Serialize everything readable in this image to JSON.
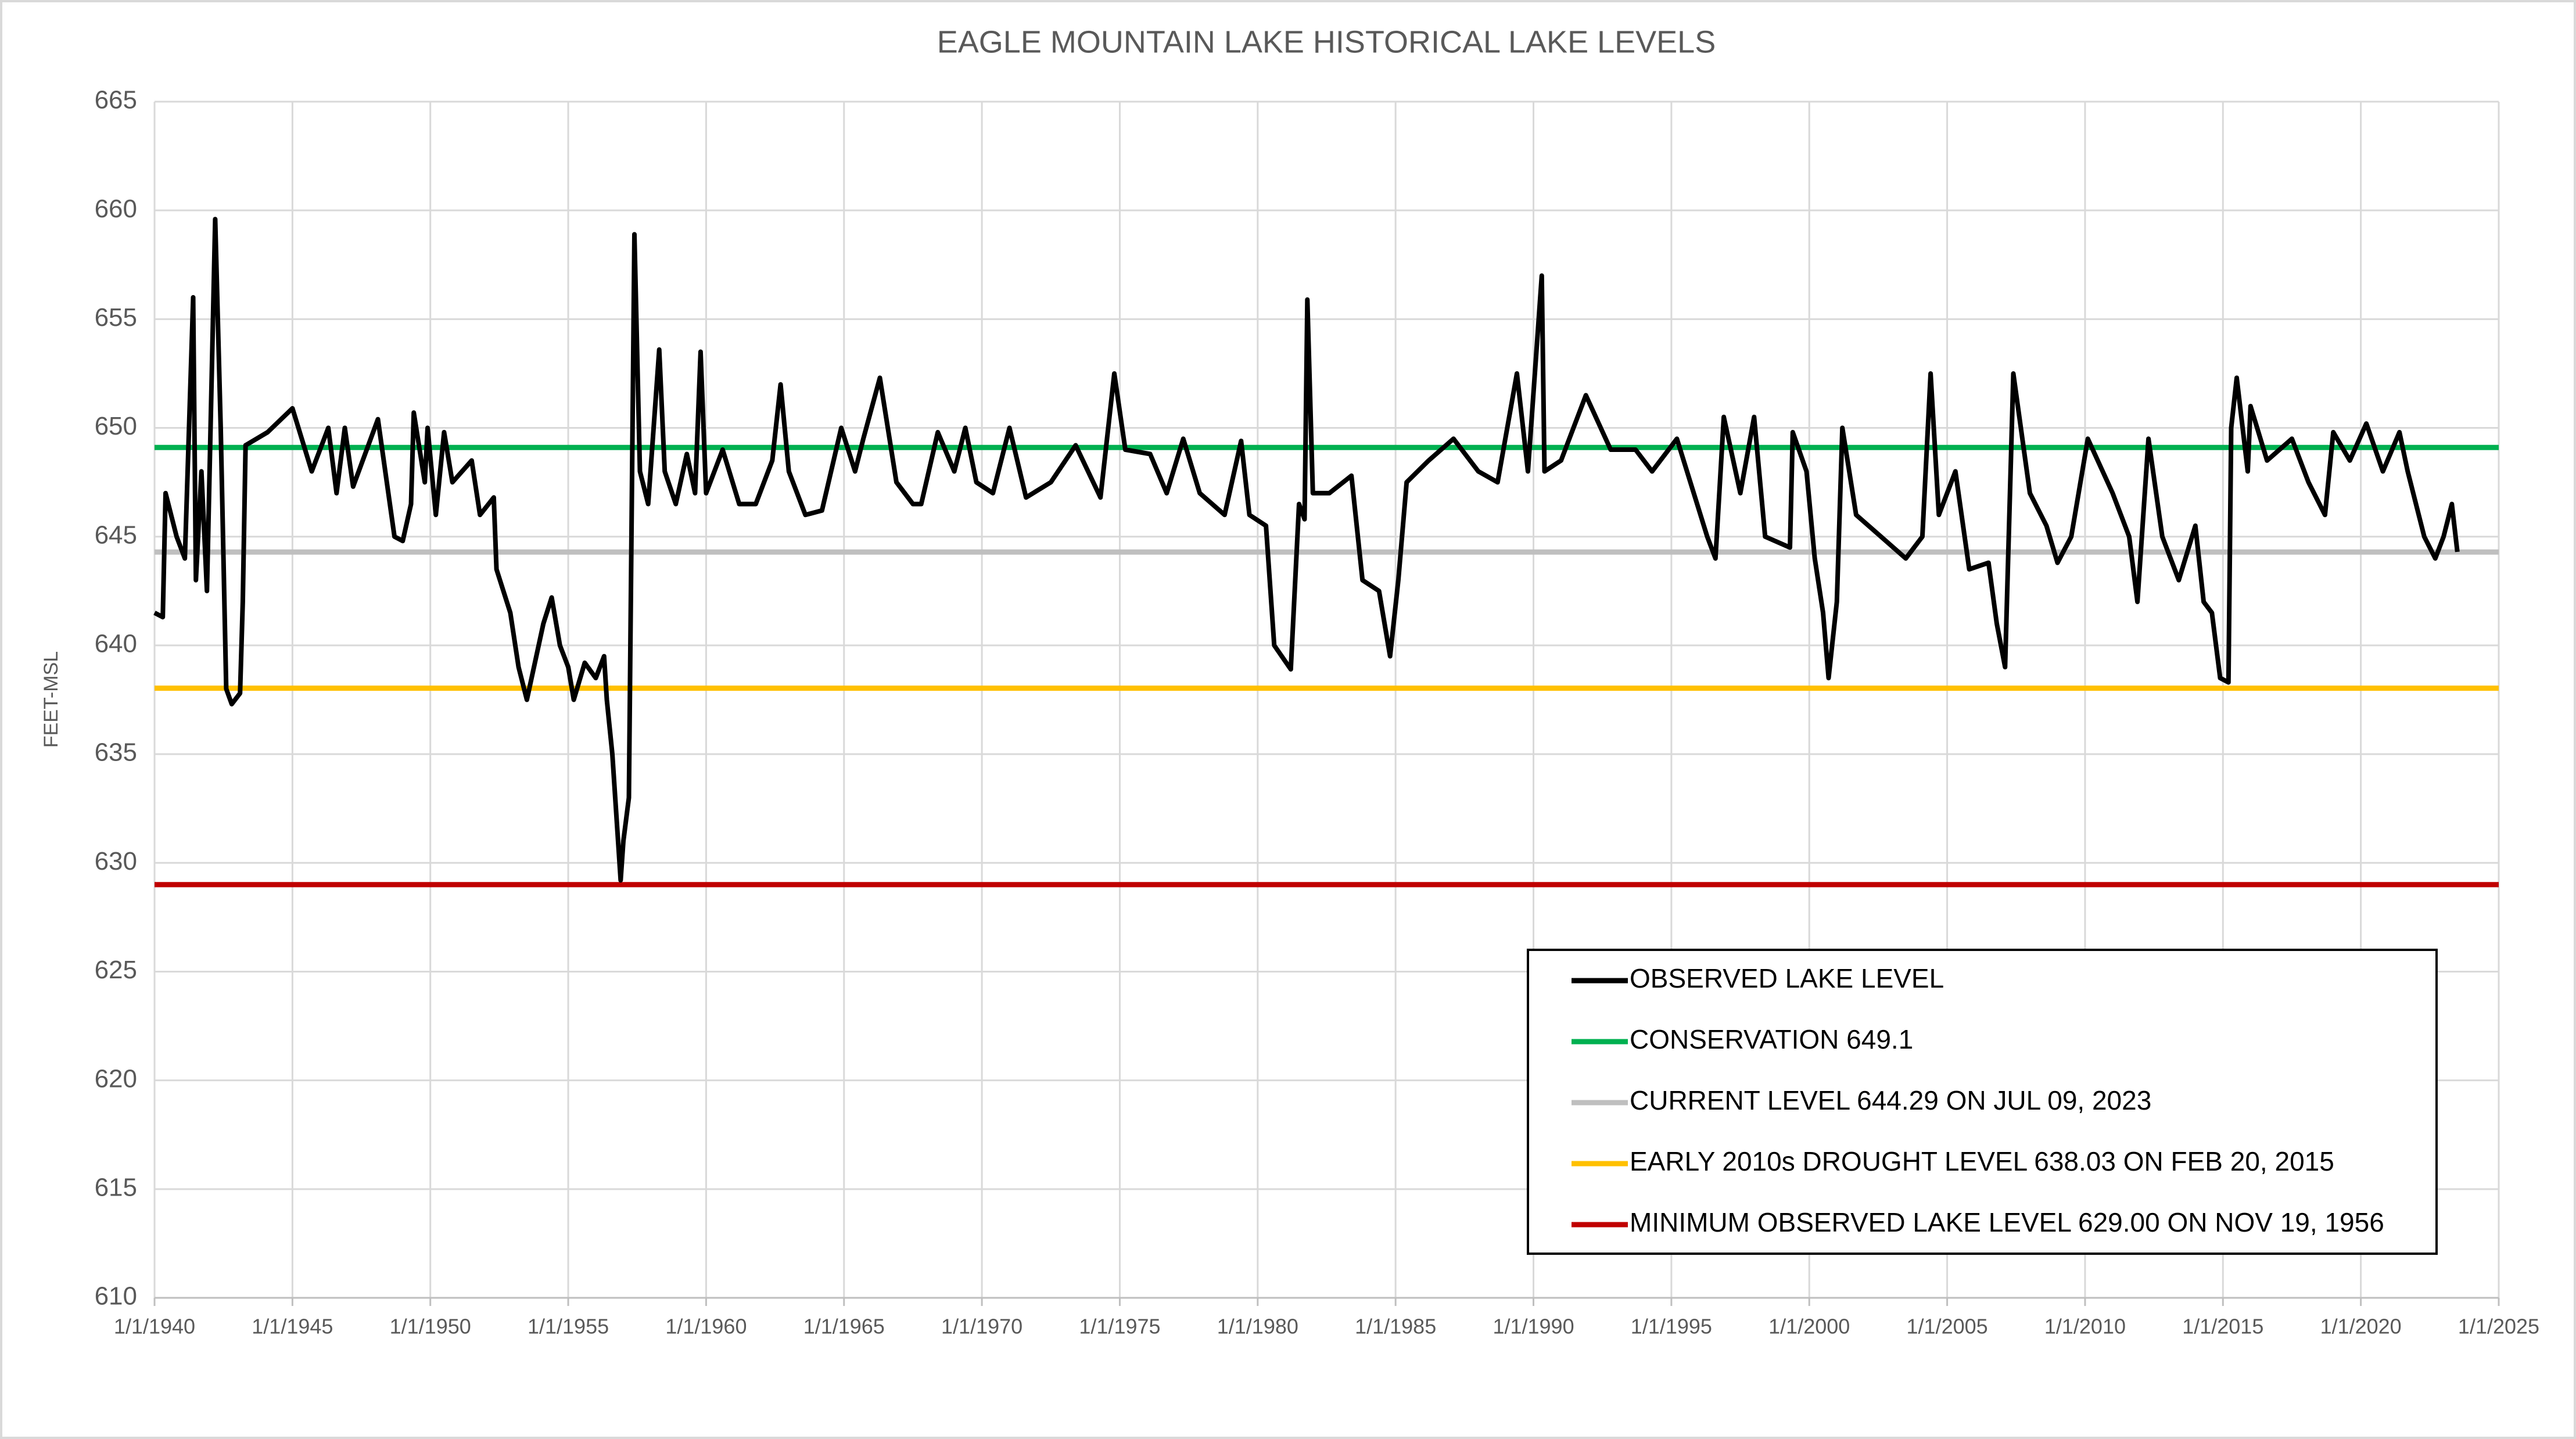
{
  "chart_data": {
    "type": "line",
    "title": "EAGLE MOUNTAIN LAKE HISTORICAL LAKE LEVELS",
    "y_label": "FEET-MSL",
    "x": [
      1940.0,
      1940.3,
      1940.4,
      1940.8,
      1941.1,
      1941.4,
      1941.5,
      1941.7,
      1941.9,
      1942.2,
      1942.4,
      1942.6,
      1942.8,
      1943.1,
      1943.2,
      1943.3,
      1944.1,
      1945.0,
      1945.7,
      1946.3,
      1946.6,
      1946.9,
      1947.2,
      1948.1,
      1948.7,
      1949.0,
      1949.3,
      1949.4,
      1949.8,
      1949.9,
      1950.2,
      1950.5,
      1950.8,
      1951.5,
      1951.8,
      1952.3,
      1952.4,
      1952.9,
      1953.2,
      1953.5,
      1954.1,
      1954.4,
      1954.7,
      1955.0,
      1955.2,
      1955.6,
      1956.0,
      1956.3,
      1956.4,
      1956.6,
      1956.9,
      1957.0,
      1957.2,
      1957.4,
      1957.6,
      1957.9,
      1958.3,
      1958.5,
      1958.9,
      1959.3,
      1959.6,
      1959.8,
      1960.0,
      1960.6,
      1961.2,
      1961.8,
      1962.4,
      1962.7,
      1963.0,
      1963.6,
      1964.2,
      1964.9,
      1965.4,
      1965.7,
      1966.3,
      1966.9,
      1967.5,
      1967.8,
      1968.4,
      1969.0,
      1969.4,
      1969.8,
      1970.4,
      1971.0,
      1971.6,
      1972.5,
      1973.4,
      1974.3,
      1974.8,
      1975.2,
      1976.1,
      1976.7,
      1977.3,
      1977.9,
      1978.8,
      1979.4,
      1979.7,
      1980.3,
      1980.6,
      1981.2,
      1981.5,
      1981.7,
      1981.8,
      1982.0,
      1982.6,
      1983.4,
      1983.8,
      1984.4,
      1984.8,
      1985.1,
      1985.4,
      1986.2,
      1987.1,
      1988.0,
      1988.7,
      1989.4,
      1989.8,
      1990.3,
      1990.4,
      1991.0,
      1991.9,
      1992.8,
      1993.7,
      1994.3,
      1995.2,
      1996.3,
      1996.6,
      1996.9,
      1997.5,
      1998.0,
      1998.4,
      1999.3,
      1999.4,
      1999.9,
      2000.2,
      2000.5,
      2000.7,
      2001.0,
      2001.2,
      2001.7,
      2002.6,
      2003.5,
      2004.1,
      2004.4,
      2004.7,
      2005.3,
      2005.8,
      2006.5,
      2006.8,
      2007.1,
      2007.4,
      2008.0,
      2008.6,
      2009.0,
      2009.5,
      2010.1,
      2011.0,
      2011.6,
      2011.9,
      2012.3,
      2012.8,
      2013.4,
      2014.0,
      2014.3,
      2014.6,
      2014.9,
      2015.2,
      2015.3,
      2015.5,
      2015.9,
      2016.0,
      2016.6,
      2017.5,
      2018.1,
      2018.7,
      2019.0,
      2019.6,
      2020.2,
      2020.8,
      2021.4,
      2021.7,
      2022.3,
      2022.7,
      2023.0,
      2023.3,
      2023.5
    ],
    "series": [
      {
        "name": "OBSERVED LAKE LEVEL",
        "color": "#000000",
        "values": [
          641.5,
          641.3,
          647,
          645,
          644,
          656,
          643,
          648,
          642.5,
          659.6,
          650,
          638,
          637.3,
          637.8,
          642,
          649.2,
          649.8,
          650.9,
          648,
          650,
          647,
          650,
          647.3,
          650.4,
          645,
          644.8,
          646.5,
          650.7,
          647.5,
          650,
          646,
          649.8,
          647.5,
          648.5,
          646,
          646.8,
          643.5,
          641.5,
          639,
          637.5,
          641,
          642.2,
          640,
          639,
          637.5,
          639.2,
          638.5,
          639.5,
          637.5,
          635,
          629.2,
          631,
          633,
          658.9,
          648,
          646.5,
          653.6,
          648,
          646.5,
          648.8,
          647,
          653.5,
          647,
          649,
          646.5,
          646.5,
          648.5,
          652,
          648,
          646,
          646.2,
          650,
          648,
          649.5,
          652.3,
          647.5,
          646.5,
          646.5,
          649.8,
          648,
          650,
          647.5,
          647,
          650,
          646.8,
          647.5,
          649.2,
          646.8,
          652.5,
          649,
          648.8,
          647,
          649.5,
          647,
          646,
          649.4,
          646,
          645.5,
          640,
          638.9,
          646.5,
          645.8,
          655.9,
          647,
          647,
          647.8,
          643,
          642.5,
          639.5,
          643,
          647.5,
          648.5,
          649.5,
          648,
          647.5,
          652.5,
          648,
          657,
          648,
          648.5,
          651.5,
          649,
          649,
          648,
          649.5,
          645,
          644,
          650.5,
          647,
          650.5,
          645,
          644.5,
          649.8,
          648,
          644,
          641.5,
          638.5,
          642,
          650,
          646,
          645,
          644,
          645,
          652.5,
          646,
          648,
          643.5,
          643.8,
          641,
          639,
          652.5,
          647,
          645.5,
          643.8,
          645,
          649.5,
          647,
          645,
          642,
          649.5,
          645,
          643,
          645.5,
          642,
          641.5,
          638.5,
          638.3,
          650,
          652.3,
          648,
          651,
          648.5,
          649.5,
          647.5,
          646,
          649.8,
          648.5,
          650.2,
          648,
          649.8,
          648,
          645,
          644,
          645,
          646.5,
          644.3
        ]
      }
    ],
    "reference_lines": [
      {
        "name": "CONSERVATION 649.1",
        "value": 649.1,
        "color": "#00b050"
      },
      {
        "name": "CURRENT LEVEL 644.29 ON JUL 09, 2023",
        "value": 644.29,
        "color": "#bfbfbf"
      },
      {
        "name": "EARLY 2010s DROUGHT LEVEL 638.03 ON FEB 20, 2015",
        "value": 638.03,
        "color": "#ffc000"
      },
      {
        "name": "MINIMUM OBSERVED LAKE LEVEL 629.00 ON NOV 19, 1956",
        "value": 629,
        "color": "#c00000"
      }
    ],
    "xlim": [
      1940,
      2025
    ],
    "xticks": [
      {
        "value": 1940,
        "label": "1/1/1940"
      },
      {
        "value": 1945,
        "label": "1/1/1945"
      },
      {
        "value": 1950,
        "label": "1/1/1950"
      },
      {
        "value": 1955,
        "label": "1/1/1955"
      },
      {
        "value": 1960,
        "label": "1/1/1960"
      },
      {
        "value": 1965,
        "label": "1/1/1965"
      },
      {
        "value": 1970,
        "label": "1/1/1970"
      },
      {
        "value": 1975,
        "label": "1/1/1975"
      },
      {
        "value": 1980,
        "label": "1/1/1980"
      },
      {
        "value": 1985,
        "label": "1/1/1985"
      },
      {
        "value": 1990,
        "label": "1/1/1990"
      },
      {
        "value": 1995,
        "label": "1/1/1995"
      },
      {
        "value": 2000,
        "label": "1/1/2000"
      },
      {
        "value": 2005,
        "label": "1/1/2005"
      },
      {
        "value": 2010,
        "label": "1/1/2010"
      },
      {
        "value": 2015,
        "label": "1/1/2015"
      },
      {
        "value": 2020,
        "label": "1/1/2020"
      },
      {
        "value": 2025,
        "label": "1/1/2025"
      }
    ],
    "ylim": [
      610,
      665
    ],
    "yticks": [
      610,
      615,
      620,
      625,
      630,
      635,
      640,
      645,
      650,
      655,
      660,
      665
    ],
    "grid": true,
    "legend": "lower right"
  }
}
